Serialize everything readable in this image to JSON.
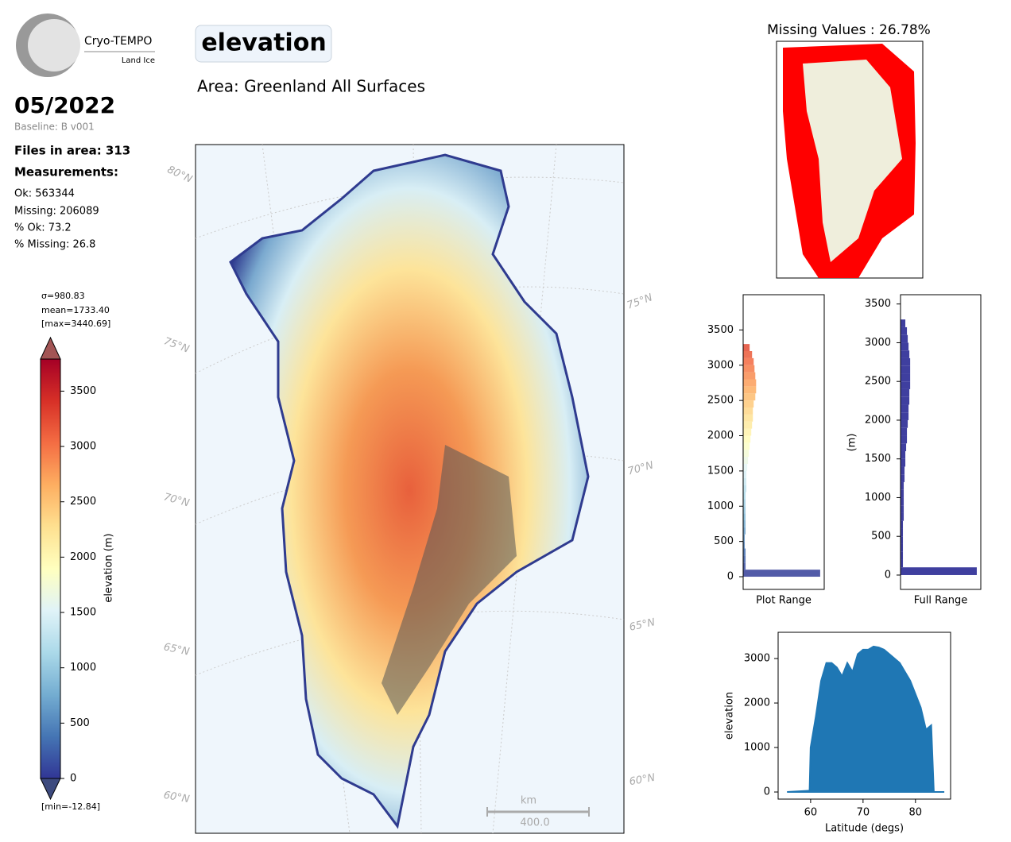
{
  "header": {
    "logo_name": "Cryo-TEMPO",
    "logo_sub": "Land Ice",
    "title": "elevation",
    "area": "Area: Greenland All Surfaces",
    "date": "05/2022",
    "baseline": "Baseline: B v001",
    "files": "Files in area: 313",
    "measurements": "Measurements:",
    "ok": "Ok: 563344",
    "missing": "Missing: 206089",
    "pct_ok": "% Ok: 73.2",
    "pct_missing": "% Missing: 26.8"
  },
  "map": {
    "lat_labels_left": [
      "80°N",
      "75°N",
      "70°N",
      "65°N",
      "60°N"
    ],
    "lat_labels_right": [
      "75°N",
      "70°N",
      "65°N",
      "60°N"
    ],
    "scale_unit": "km",
    "scale_length": "400.0"
  },
  "missing_map": {
    "title": "Missing Values : 26.78%"
  },
  "chart_data": [
    {
      "type": "colorbar",
      "ylabel": "elevation (m)",
      "ylim": [
        0,
        3790
      ],
      "yticks": [
        0,
        500,
        1000,
        1500,
        2000,
        2500,
        3000,
        3500
      ],
      "colors": [
        "#313695",
        "#4575b4",
        "#74add1",
        "#abd9e9",
        "#e0f3f8",
        "#ffffbf",
        "#fee090",
        "#fdae61",
        "#f46d43",
        "#d73027",
        "#a50026"
      ],
      "under_color": "#3d4a7e",
      "over_color": "#a35555",
      "annotations": [
        "σ=980.83",
        "mean=1733.40",
        "[max=3440.69]",
        "[min=-12.84]"
      ]
    },
    {
      "type": "histogram",
      "xlabel": "Plot Range",
      "ylim": [
        -180,
        4000
      ],
      "yticks": [
        0,
        500,
        1000,
        1500,
        2000,
        2500,
        3000,
        3500
      ],
      "xlim": [
        0,
        100
      ],
      "color_by_value": true,
      "bins": [
        0,
        100,
        200,
        300,
        400,
        500,
        600,
        700,
        800,
        900,
        1000,
        1100,
        1200,
        1300,
        1400,
        1500,
        1600,
        1700,
        1800,
        1900,
        2000,
        2100,
        2200,
        2300,
        2400,
        2500,
        2600,
        2700,
        2800,
        2900,
        3000,
        3100,
        3200,
        3300
      ],
      "values": [
        95,
        3,
        3,
        3,
        2,
        2,
        3,
        3,
        3,
        3,
        3,
        3,
        4,
        4,
        4,
        5,
        6,
        7,
        8,
        9,
        10,
        11,
        12,
        12,
        13,
        15,
        16,
        16,
        15,
        14,
        13,
        11,
        8
      ]
    },
    {
      "type": "histogram",
      "xlabel": "Full Range",
      "ylabel": "(m)",
      "ylim": [
        -185,
        3620
      ],
      "yticks": [
        0,
        500,
        1000,
        1500,
        2000,
        2500,
        3000,
        3500
      ],
      "xlim": [
        0,
        100
      ],
      "color": "#3f3f9f",
      "bins": [
        0,
        100,
        200,
        300,
        400,
        500,
        600,
        700,
        800,
        900,
        1000,
        1100,
        1200,
        1300,
        1400,
        1500,
        1600,
        1700,
        1800,
        1900,
        2000,
        2100,
        2200,
        2300,
        2400,
        2500,
        2600,
        2700,
        2800,
        2900,
        3000,
        3100,
        3200,
        3300
      ],
      "values": [
        95,
        3,
        3,
        3,
        3,
        3,
        3,
        4,
        4,
        4,
        4,
        4,
        5,
        5,
        6,
        6,
        7,
        8,
        8,
        9,
        10,
        10,
        11,
        11,
        12,
        12,
        12,
        12,
        11,
        10,
        9,
        8,
        6
      ]
    },
    {
      "type": "area",
      "xlabel": "Latitude (degs)",
      "ylabel": "elevation",
      "color": "#1f77b4",
      "xlim": [
        53.8,
        86.7
      ],
      "xticks": [
        60,
        70,
        80
      ],
      "ylim": [
        -160,
        3590
      ],
      "yticks": [
        0,
        1000,
        2000,
        3000
      ],
      "x": [
        55.5,
        59.8,
        60,
        61,
        62,
        63,
        64,
        65,
        66,
        67,
        68,
        69,
        70,
        71,
        72,
        73,
        74,
        75,
        76,
        77,
        78,
        79,
        80,
        81,
        82,
        83,
        83.5,
        85.5
      ],
      "values": [
        0,
        30,
        1000,
        1700,
        2500,
        2900,
        2900,
        2800,
        2600,
        2900,
        2700,
        3100,
        3200,
        3200,
        3270,
        3250,
        3200,
        3100,
        3000,
        2900,
        2700,
        2500,
        2200,
        1900,
        1400,
        1500,
        0,
        0
      ]
    }
  ]
}
